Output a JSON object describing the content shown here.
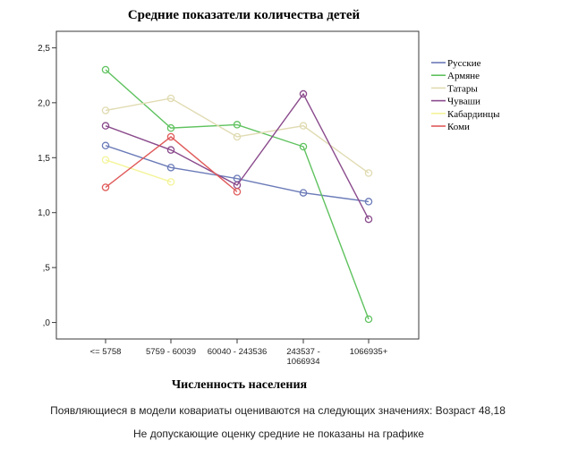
{
  "chart_data": {
    "type": "line",
    "title": "Средние показатели количества детей",
    "xlabel": "Численность населения",
    "ylabel": "",
    "categories": [
      "<= 5758",
      "5759 - 60039",
      "60040 - 243536",
      "243537 - 1066934",
      "1066935+"
    ],
    "ylim": [
      -0.15,
      2.65
    ],
    "yticks": [
      0,
      0.5,
      1.0,
      1.5,
      2.0,
      2.5
    ],
    "ytick_labels": [
      ",0",
      ",5",
      "1,0",
      "1,5",
      "2,0",
      "2,5"
    ],
    "grid": false,
    "legend_position": "right",
    "series": [
      {
        "name": "Русские",
        "color": "#6b7bb8",
        "values": [
          1.61,
          1.41,
          1.31,
          1.18,
          1.1
        ]
      },
      {
        "name": "Армяне",
        "color": "#5fc25f",
        "values": [
          2.3,
          1.77,
          1.8,
          1.6,
          0.03
        ]
      },
      {
        "name": "Татары",
        "color": "#e0dbb2",
        "values": [
          1.93,
          2.04,
          1.69,
          1.79,
          1.36
        ]
      },
      {
        "name": "Чуваши",
        "color": "#8a4a8c",
        "values": [
          1.79,
          1.57,
          1.25,
          2.08,
          0.94
        ]
      },
      {
        "name": "Кабардинцы",
        "color": "#f4f49a",
        "values": [
          1.48,
          1.28,
          null,
          null,
          null
        ]
      },
      {
        "name": "Коми",
        "color": "#e05a5a",
        "values": [
          1.23,
          1.69,
          1.19,
          null,
          null
        ]
      }
    ]
  },
  "notes": {
    "covariates": "Появляющиеся в модели ковариаты оцениваются на следующих значениях: Возраст 48,18",
    "missing": "Не допускающие оценку средние не показаны на графике"
  }
}
